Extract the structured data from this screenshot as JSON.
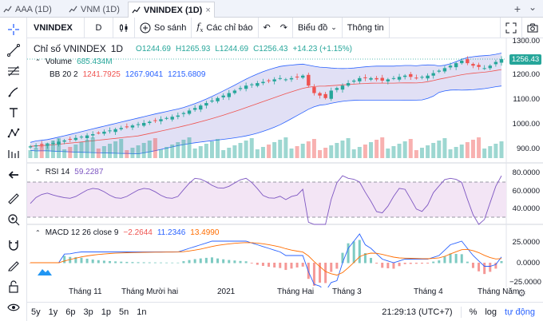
{
  "tabs": [
    {
      "label": "AAA (1D)",
      "active": false
    },
    {
      "label": "VNM (1D)",
      "active": false
    },
    {
      "label": "VNINDEX (1D)",
      "active": true
    }
  ],
  "tab_close": "×",
  "toolbar": {
    "symbol": "VNINDEX",
    "interval": "D",
    "compare_label": "So sánh",
    "indicators_label": "Các chỉ báo",
    "chart_type_label": "Biểu đồ",
    "info_label": "Thông tin"
  },
  "legend": {
    "title": "Chỉ số VNINDEX",
    "interval": "1D",
    "open": "O1244.69",
    "high": "H1265.93",
    "low": "L1244.69",
    "close": "C1256.43",
    "change": "+14.23 (+1.15%)",
    "volume_label": "Volume",
    "volume_value": "685.434M",
    "bb_label": "BB 20 2",
    "bb_basis": "1241.7925",
    "bb_upper": "1267.9041",
    "bb_lower": "1215.6809",
    "rsi_label": "RSI 14",
    "rsi_value": "59.2287",
    "macd_label": "MACD 12 26 close 9",
    "macd_hist": "−2.2644",
    "macd_line": "11.2346",
    "macd_signal": "13.4990"
  },
  "price_axis": [
    "1300.00",
    "1200.00",
    "1100.00",
    "1000.00",
    "900.00"
  ],
  "current_price": "1256.43",
  "rsi_axis": [
    "80.0000",
    "60.0000",
    "40.0000"
  ],
  "macd_axis": [
    "25.0000",
    "0.0000",
    "−25.0000"
  ],
  "x_axis": [
    "Tháng 11",
    "Tháng Mười hai",
    "2021",
    "Tháng Hai",
    "Tháng 3",
    "Tháng 4",
    "Tháng Năm"
  ],
  "ranges": [
    "5y",
    "1y",
    "6p",
    "3p",
    "1p",
    "5n",
    "1n"
  ],
  "status": {
    "time": "21:29:13 (UTC+7)",
    "percent": "%",
    "log": "log",
    "auto": "tự động"
  },
  "colors": {
    "up": "#26a69a",
    "down": "#ef5350",
    "bb_fill": "#e1e0f5",
    "bb_band": "#2962ff",
    "bb_basis": "#ef5350",
    "rsi_line": "#7e57c2",
    "rsi_fill": "#f3e5f5",
    "macd_line": "#2962ff",
    "signal_line": "#ff6d00"
  },
  "chart_data": {
    "type": "candlestick",
    "close": [
      906,
      910,
      912,
      915,
      920,
      925,
      930,
      935,
      940,
      945,
      950,
      955,
      960,
      965,
      970,
      975,
      980,
      985,
      990,
      995,
      1000,
      1005,
      1010,
      1015,
      1020,
      1025,
      1030,
      1040,
      1050,
      1060,
      1070,
      1080,
      1090,
      1100,
      1110,
      1120,
      1130,
      1140,
      1150,
      1155,
      1160,
      1165,
      1170,
      1175,
      1180,
      1175,
      1180,
      1185,
      1190,
      1150,
      1120,
      1110,
      1100,
      1130,
      1140,
      1150,
      1160,
      1170,
      1180,
      1180,
      1180,
      1175,
      1170,
      1175,
      1180,
      1185,
      1190,
      1185,
      1180,
      1185,
      1190,
      1200,
      1210,
      1220,
      1230,
      1240,
      1250,
      1240,
      1230,
      1225,
      1220,
      1230,
      1245,
      1256
    ]
  }
}
